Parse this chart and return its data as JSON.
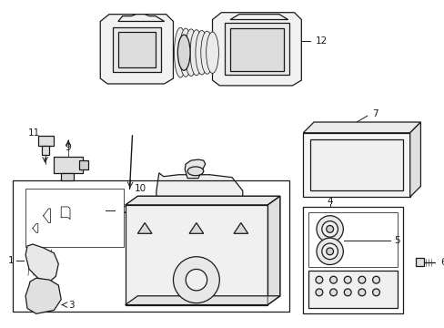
{
  "bg_color": "#ffffff",
  "line_color": "#1a1a1a",
  "label_color": "#000000",
  "lw": 0.9,
  "lw_thin": 0.55,
  "label_fs": 7.5
}
